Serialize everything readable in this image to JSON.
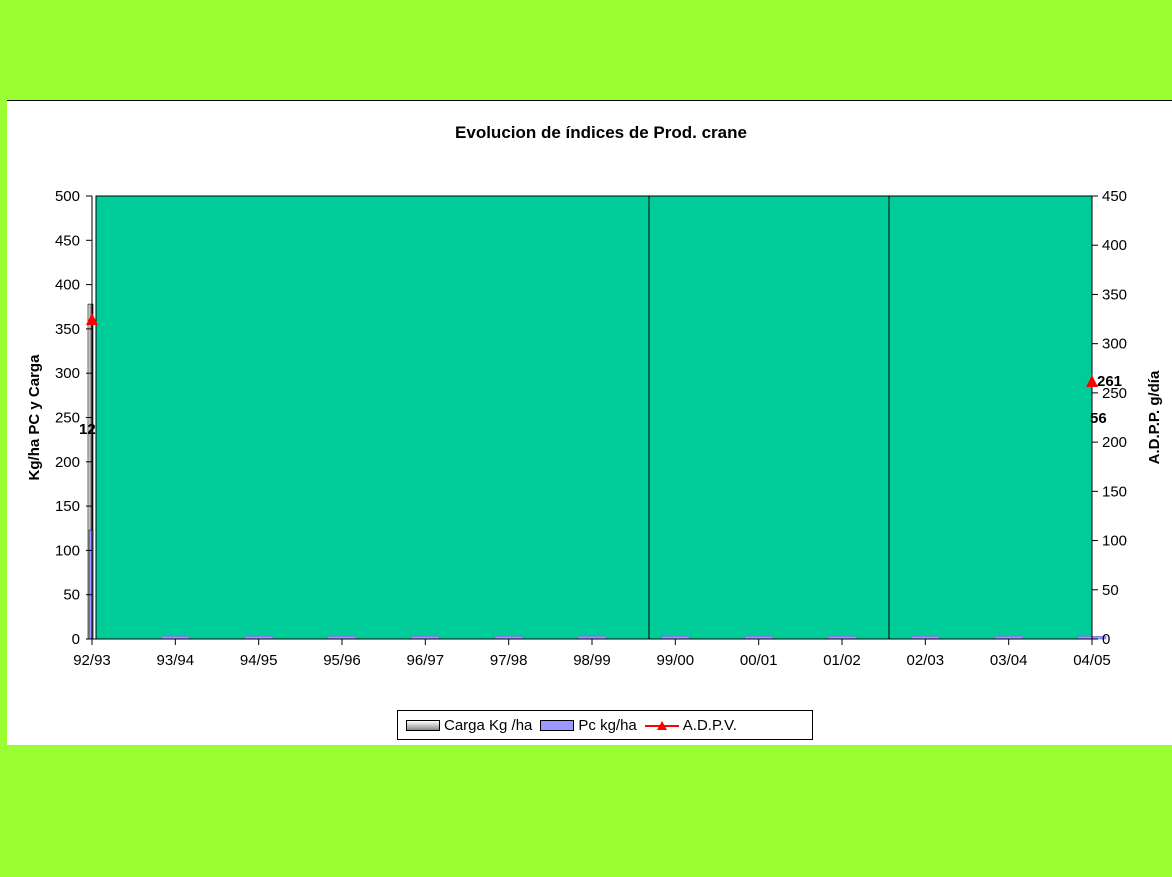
{
  "chart_data": {
    "type": "bar",
    "title": "Evolucion de índices de Prod. crane",
    "ylabel": "Kg/ha PC y Carga",
    "y2label": "A.D.P.P. g/día",
    "ylim": [
      0,
      500
    ],
    "y2lim": [
      0,
      450
    ],
    "categories": [
      "92/93",
      "93/94",
      "94/95",
      "95/96",
      "96/97",
      "97/98",
      "98/99",
      "99/00",
      "00/01",
      "01/02",
      "02/03",
      "03/04",
      "04/05"
    ],
    "yticks": [
      0,
      50,
      100,
      150,
      200,
      250,
      300,
      350,
      400,
      450,
      500
    ],
    "y2ticks": [
      0,
      50,
      100,
      150,
      200,
      250,
      300,
      350,
      400,
      450
    ],
    "series": [
      {
        "name": "Carga Kg /ha",
        "values": [
          378,
          3,
          3,
          3,
          3,
          3,
          3,
          3,
          3,
          3,
          3,
          3,
          3
        ]
      },
      {
        "name": "Pc kg/ha",
        "values": [
          123,
          3,
          3,
          3,
          3,
          3,
          3,
          3,
          3,
          3,
          3,
          3,
          3
        ]
      },
      {
        "name": "A.D.P.V.",
        "values": [
          324,
          null,
          null,
          null,
          null,
          null,
          null,
          null,
          null,
          null,
          null,
          null,
          261
        ]
      }
    ],
    "data_labels": [
      "12",
      "261",
      "56"
    ],
    "legend_position": "bottom",
    "plot_background": "#00CC99"
  },
  "colors": {
    "band": "#99FF33",
    "plot": "#00CC99",
    "pc": "#9999FF",
    "adpv": "#FF0000"
  }
}
